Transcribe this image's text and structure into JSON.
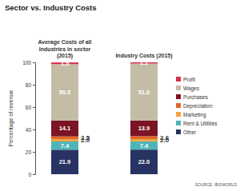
{
  "chart_data": {
    "type": "bar",
    "title": "Sector vs. Industry Costs",
    "categories": [
      "Average Costs of all Industries in sector (2015)",
      "Industry Costs (2015)"
    ],
    "y_label": "Percentage of revenue",
    "source": "SOURCE: IBISWORLD",
    "stacked": true,
    "data_labels": true,
    "legend": "right",
    "grid": false,
    "ylim": [
      0,
      100
    ],
    "yticks": [
      0,
      20,
      40,
      60,
      80,
      100
    ],
    "series": [
      {
        "name": "Other",
        "color": "#283364",
        "values": [
          21.9,
          22.0
        ],
        "value_labels": [
          "21.9",
          "22.0"
        ]
      },
      {
        "name": "Rent & Utilities",
        "color": "#4fb4b8",
        "values": [
          7.4,
          7.4
        ],
        "value_labels": [
          "7.4",
          "7.4"
        ]
      },
      {
        "name": "Marketing",
        "color": "#f2a541",
        "values": [
          2.0,
          2.0
        ],
        "value_labels": [
          "2.0",
          "2.0"
        ]
      },
      {
        "name": "Depreciation",
        "color": "#e2672a",
        "values": [
          2.5,
          2.6
        ],
        "value_labels": [
          "2.5",
          "2.6"
        ]
      },
      {
        "name": "Purchases",
        "color": "#7b1424",
        "values": [
          14.1,
          13.9
        ],
        "value_labels": [
          "14.1",
          "13.9"
        ]
      },
      {
        "name": "Wages",
        "color": "#c5bca6",
        "values": [
          50.5,
          51.0
        ],
        "value_labels": [
          "50.5",
          "51.0"
        ]
      },
      {
        "name": "Profit",
        "color": "#d42f4b",
        "values": [
          1.5,
          1.1
        ],
        "value_labels": [
          "1.5",
          "1.1"
        ]
      }
    ]
  }
}
